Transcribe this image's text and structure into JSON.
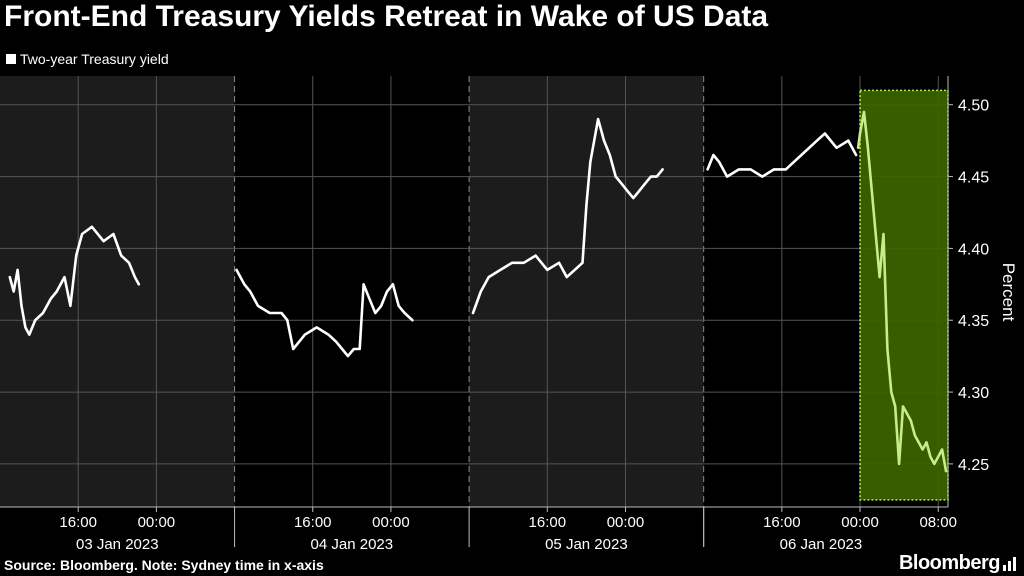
{
  "title": "Front-End Treasury Yields Retreat in Wake of US Data",
  "legend_label": "Two-year Treasury yield",
  "source": "Source: Bloomberg. Note: Sydney time in x-axis",
  "brand": "Bloomberg",
  "colors": {
    "background": "#000000",
    "band": "#1c1c1c",
    "line": "#ffffff",
    "highlight_fill": "#3d6400",
    "highlight_stroke": "#b6f03c",
    "highlight_line": "#c8ec8a",
    "grid": "#555555",
    "text": "#ffffff"
  },
  "chart_data": {
    "type": "line",
    "ylabel": "Percent",
    "ylim": [
      4.22,
      4.52
    ],
    "yticks": [
      4.25,
      4.3,
      4.35,
      4.4,
      4.45,
      4.5
    ],
    "ytick_labels": [
      "4.25",
      "4.30",
      "4.35",
      "4.40",
      "4.45",
      "4.50"
    ],
    "xlim": [
      "2023-01-03 08:00",
      "2023-01-07 09:00"
    ],
    "x_time_labels": [
      {
        "x": "2023-01-03 16:00",
        "label": "16:00"
      },
      {
        "x": "2023-01-04 00:00",
        "label": "00:00"
      },
      {
        "x": "2023-01-04 16:00",
        "label": "16:00"
      },
      {
        "x": "2023-01-05 00:00",
        "label": "00:00"
      },
      {
        "x": "2023-01-05 16:00",
        "label": "16:00"
      },
      {
        "x": "2023-01-06 00:00",
        "label": "00:00"
      },
      {
        "x": "2023-01-06 16:00",
        "label": "16:00"
      },
      {
        "x": "2023-01-07 00:00",
        "label": "00:00"
      },
      {
        "x": "2023-01-07 08:00",
        "label": "08:00"
      }
    ],
    "date_labels": [
      {
        "x": "2023-01-03 20:00",
        "label": "03 Jan 2023"
      },
      {
        "x": "2023-01-04 20:00",
        "label": "04 Jan 2023"
      },
      {
        "x": "2023-01-05 20:00",
        "label": "05 Jan 2023"
      },
      {
        "x": "2023-01-06 20:00",
        "label": "06 Jan 2023"
      }
    ],
    "session_bands": [
      {
        "start": "2023-01-03 08:00",
        "end": "2023-01-04 08:00"
      },
      {
        "start": "2023-01-05 08:00",
        "end": "2023-01-06 08:00"
      }
    ],
    "highlight": {
      "start": "2023-01-07 00:00",
      "end": "2023-01-07 09:00",
      "ylim": [
        4.225,
        4.51
      ]
    },
    "series": [
      {
        "segments": [
          [
            [
              "2023-01-03 09:00",
              4.38
            ],
            [
              "2023-01-03 09:24",
              4.37
            ],
            [
              "2023-01-03 09:48",
              4.385
            ],
            [
              "2023-01-03 10:12",
              4.36
            ],
            [
              "2023-01-03 10:36",
              4.345
            ],
            [
              "2023-01-03 11:00",
              4.34
            ],
            [
              "2023-01-03 11:36",
              4.35
            ],
            [
              "2023-01-03 12:24",
              4.355
            ],
            [
              "2023-01-03 13:12",
              4.365
            ],
            [
              "2023-01-03 13:48",
              4.37
            ],
            [
              "2023-01-03 14:36",
              4.38
            ],
            [
              "2023-01-03 15:12",
              4.36
            ],
            [
              "2023-01-03 15:48",
              4.395
            ],
            [
              "2023-01-03 16:24",
              4.41
            ],
            [
              "2023-01-03 17:24",
              4.415
            ],
            [
              "2023-01-03 18:36",
              4.405
            ],
            [
              "2023-01-03 19:36",
              4.41
            ],
            [
              "2023-01-03 20:24",
              4.395
            ],
            [
              "2023-01-03 21:12",
              4.39
            ],
            [
              "2023-01-03 21:48",
              4.38
            ],
            [
              "2023-01-03 22:12",
              4.375
            ]
          ],
          [
            [
              "2023-01-04 08:12",
              4.385
            ],
            [
              "2023-01-04 09:00",
              4.375
            ],
            [
              "2023-01-04 09:36",
              4.37
            ],
            [
              "2023-01-04 10:24",
              4.36
            ],
            [
              "2023-01-04 11:36",
              4.355
            ],
            [
              "2023-01-04 12:48",
              4.355
            ],
            [
              "2023-01-04 13:24",
              4.35
            ],
            [
              "2023-01-04 14:00",
              4.33
            ],
            [
              "2023-01-04 14:36",
              4.335
            ],
            [
              "2023-01-04 15:12",
              4.34
            ],
            [
              "2023-01-04 16:24",
              4.345
            ],
            [
              "2023-01-04 17:36",
              4.34
            ],
            [
              "2023-01-04 18:24",
              4.335
            ],
            [
              "2023-01-04 19:00",
              4.33
            ],
            [
              "2023-01-04 19:36",
              4.325
            ],
            [
              "2023-01-04 20:12",
              4.33
            ],
            [
              "2023-01-04 20:48",
              4.33
            ],
            [
              "2023-01-04 21:12",
              4.375
            ],
            [
              "2023-01-04 21:48",
              4.365
            ],
            [
              "2023-01-04 22:24",
              4.355
            ],
            [
              "2023-01-04 23:00",
              4.36
            ],
            [
              "2023-01-04 23:36",
              4.37
            ],
            [
              "2023-01-05 00:12",
              4.375
            ],
            [
              "2023-01-05 00:48",
              4.36
            ],
            [
              "2023-01-05 01:24",
              4.355
            ],
            [
              "2023-01-05 02:12",
              4.35
            ]
          ],
          [
            [
              "2023-01-05 08:24",
              4.355
            ],
            [
              "2023-01-05 09:12",
              4.37
            ],
            [
              "2023-01-05 10:00",
              4.38
            ],
            [
              "2023-01-05 11:12",
              4.385
            ],
            [
              "2023-01-05 12:24",
              4.39
            ],
            [
              "2023-01-05 13:36",
              4.39
            ],
            [
              "2023-01-05 14:48",
              4.395
            ],
            [
              "2023-01-05 16:00",
              4.385
            ],
            [
              "2023-01-05 17:12",
              4.39
            ],
            [
              "2023-01-05 18:00",
              4.38
            ],
            [
              "2023-01-05 18:48",
              4.385
            ],
            [
              "2023-01-05 19:36",
              4.39
            ],
            [
              "2023-01-05 20:00",
              4.43
            ],
            [
              "2023-01-05 20:24",
              4.46
            ],
            [
              "2023-01-05 20:48",
              4.475
            ],
            [
              "2023-01-05 21:12",
              4.49
            ],
            [
              "2023-01-05 21:48",
              4.475
            ],
            [
              "2023-01-05 22:24",
              4.465
            ],
            [
              "2023-01-05 23:00",
              4.45
            ],
            [
              "2023-01-05 23:36",
              4.445
            ],
            [
              "2023-01-06 00:12",
              4.44
            ],
            [
              "2023-01-06 00:48",
              4.435
            ],
            [
              "2023-01-06 01:24",
              4.44
            ],
            [
              "2023-01-06 02:00",
              4.445
            ],
            [
              "2023-01-06 02:36",
              4.45
            ],
            [
              "2023-01-06 03:12",
              4.45
            ],
            [
              "2023-01-06 03:48",
              4.455
            ]
          ],
          [
            [
              "2023-01-06 08:24",
              4.455
            ],
            [
              "2023-01-06 09:00",
              4.465
            ],
            [
              "2023-01-06 09:36",
              4.46
            ],
            [
              "2023-01-06 10:24",
              4.45
            ],
            [
              "2023-01-06 11:36",
              4.455
            ],
            [
              "2023-01-06 12:48",
              4.455
            ],
            [
              "2023-01-06 14:00",
              4.45
            ],
            [
              "2023-01-06 15:12",
              4.455
            ],
            [
              "2023-01-06 16:24",
              4.455
            ],
            [
              "2023-01-06 17:12",
              4.46
            ],
            [
              "2023-01-06 18:00",
              4.465
            ],
            [
              "2023-01-06 18:48",
              4.47
            ],
            [
              "2023-01-06 19:36",
              4.475
            ],
            [
              "2023-01-06 20:24",
              4.48
            ],
            [
              "2023-01-06 21:36",
              4.47
            ],
            [
              "2023-01-06 22:48",
              4.475
            ],
            [
              "2023-01-06 23:36",
              4.465
            ]
          ]
        ]
      },
      {
        "segments": [
          [
            [
              "2023-01-06 23:48",
              4.47
            ],
            [
              "2023-01-07 00:00",
              4.48
            ],
            [
              "2023-01-07 00:24",
              4.495
            ],
            [
              "2023-01-07 00:48",
              4.47
            ],
            [
              "2023-01-07 01:12",
              4.44
            ],
            [
              "2023-01-07 01:36",
              4.41
            ],
            [
              "2023-01-07 02:00",
              4.38
            ],
            [
              "2023-01-07 02:24",
              4.41
            ],
            [
              "2023-01-07 02:48",
              4.33
            ],
            [
              "2023-01-07 03:12",
              4.3
            ],
            [
              "2023-01-07 03:36",
              4.29
            ],
            [
              "2023-01-07 04:00",
              4.25
            ],
            [
              "2023-01-07 04:24",
              4.29
            ],
            [
              "2023-01-07 04:48",
              4.285
            ],
            [
              "2023-01-07 05:12",
              4.28
            ],
            [
              "2023-01-07 05:36",
              4.27
            ],
            [
              "2023-01-07 06:00",
              4.265
            ],
            [
              "2023-01-07 06:24",
              4.26
            ],
            [
              "2023-01-07 06:48",
              4.265
            ],
            [
              "2023-01-07 07:12",
              4.255
            ],
            [
              "2023-01-07 07:36",
              4.25
            ],
            [
              "2023-01-07 08:00",
              4.255
            ],
            [
              "2023-01-07 08:24",
              4.26
            ],
            [
              "2023-01-07 08:48",
              4.245
            ]
          ]
        ]
      }
    ]
  }
}
